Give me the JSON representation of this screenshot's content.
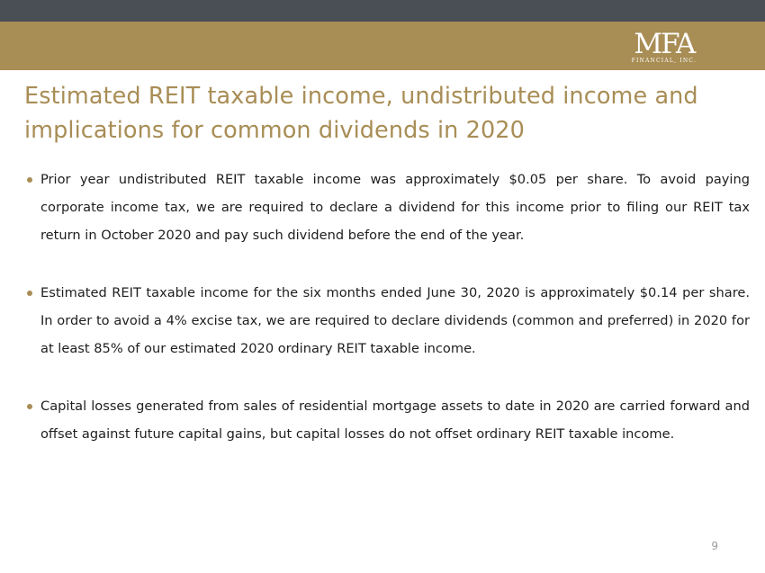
{
  "header": {
    "logo_mark": "MFA",
    "logo_sub": "FINANCIAL, INC."
  },
  "slide": {
    "title": "Estimated REIT taxable income, undistributed income and implications for common dividends in 2020",
    "bullets": [
      "Prior year undistributed REIT taxable income was approximately $0.05 per share.  To avoid paying corporate income tax, we are required to declare a dividend for this income prior to filing our REIT tax return in October 2020 and pay such dividend before the end of the year.",
      "Estimated REIT taxable income for the six months ended June 30, 2020 is approximately $0.14 per share.  In order to avoid a 4% excise tax, we are required  to declare dividends (common and preferred) in 2020 for at least 85% of our estimated 2020 ordinary REIT taxable income.",
      "Capital losses generated from sales of residential mortgage assets to date in 2020 are carried forward and offset against future capital gains, but capital losses do not offset ordinary REIT taxable income."
    ],
    "page_number": "9"
  },
  "colors": {
    "top_bar": "#4a4f55",
    "accent_gold": "#a88d55",
    "text": "#1e1e1e"
  }
}
